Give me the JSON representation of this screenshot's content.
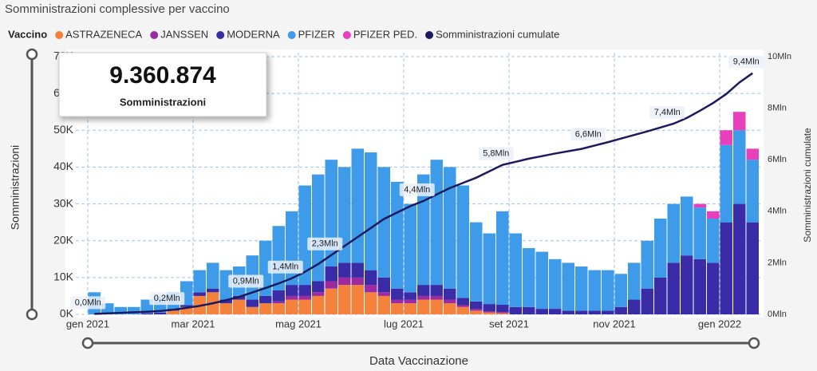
{
  "chart_data": {
    "type": "bar",
    "stacked": true,
    "title": "Somministrazioni complessive per vaccino",
    "legend_title": "Vaccino",
    "ylabel": "Somministrazioni",
    "y2label": "Somministrazioni cumulate",
    "xlabel": "Data Vaccinazione",
    "card": {
      "value": "9.360.874",
      "label": "Somministrazioni"
    },
    "grid": true,
    "categories": [
      "gen 2021",
      null,
      null,
      null,
      null,
      null,
      null,
      null,
      "mar 2021",
      null,
      null,
      null,
      null,
      null,
      null,
      null,
      "mag 2021",
      null,
      null,
      null,
      null,
      null,
      null,
      null,
      "lug 2021",
      null,
      null,
      null,
      null,
      null,
      null,
      null,
      "set 2021",
      null,
      null,
      null,
      null,
      null,
      null,
      null,
      "nov 2021",
      null,
      null,
      null,
      null,
      null,
      null,
      null,
      "gen 2022",
      null,
      null
    ],
    "ylim": [
      0,
      70
    ],
    "yticks": [
      {
        "value": 0,
        "label": "0K"
      },
      {
        "value": 10,
        "label": "10K"
      },
      {
        "value": 20,
        "label": "20K"
      },
      {
        "value": 30,
        "label": "30K"
      },
      {
        "value": 40,
        "label": "40K"
      },
      {
        "value": 50,
        "label": "50K"
      },
      {
        "value": 60,
        "label": "60K"
      },
      {
        "value": 70,
        "label": "70K"
      }
    ],
    "y2lim": [
      0,
      10
    ],
    "y2ticks": [
      {
        "value": 0,
        "label": "0Mln"
      },
      {
        "value": 2,
        "label": "2Mln"
      },
      {
        "value": 4,
        "label": "4Mln"
      },
      {
        "value": 6,
        "label": "6Mln"
      },
      {
        "value": 8,
        "label": "8Mln"
      },
      {
        "value": 10,
        "label": "10Mln"
      }
    ],
    "series": [
      {
        "name": "ASTRAZENECA",
        "color": "#f5823c",
        "values": [
          0,
          0,
          0,
          0,
          0,
          0,
          1,
          2,
          5,
          6,
          3,
          4,
          2,
          3,
          3,
          4,
          4,
          5,
          7,
          8,
          8,
          6,
          5,
          3,
          3,
          4,
          4,
          3,
          2,
          1,
          0.5,
          0.3,
          0,
          0,
          0,
          0,
          0,
          0,
          0,
          0,
          0,
          0,
          0,
          0,
          0,
          0,
          0,
          0,
          0,
          0,
          0
        ]
      },
      {
        "name": "JANSSEN",
        "color": "#9c2aa0",
        "values": [
          0,
          0,
          0,
          0,
          0,
          0,
          0,
          0,
          0,
          0,
          0,
          0,
          0,
          0,
          0.5,
          1,
          1,
          1,
          2,
          2,
          2,
          2,
          1,
          1,
          1,
          1,
          1,
          1,
          0.5,
          0.5,
          0.3,
          0.3,
          0,
          0,
          0,
          0,
          0,
          0,
          0,
          0,
          0,
          0,
          0,
          0,
          0,
          0,
          0,
          0,
          0,
          0,
          0
        ]
      },
      {
        "name": "MODERNA",
        "color": "#3a2ca6",
        "values": [
          0,
          0,
          0,
          0,
          0.3,
          0.5,
          0.5,
          0.5,
          1,
          1,
          1,
          1,
          2,
          2,
          3,
          3,
          3,
          3,
          4,
          4,
          4,
          4,
          4,
          3,
          2,
          3,
          3,
          3,
          2,
          2,
          2,
          2,
          2,
          2,
          1.5,
          1.5,
          1,
          1,
          1,
          1,
          2,
          4,
          7,
          10,
          14,
          16,
          15,
          14,
          25,
          30,
          25
        ]
      },
      {
        "name": "PFIZER",
        "color": "#3d9be9",
        "values": [
          6,
          3,
          2,
          2,
          3.7,
          4.5,
          4.5,
          6.5,
          6,
          7,
          8,
          8,
          12,
          15,
          17.5,
          20,
          27,
          29,
          29,
          26,
          31,
          32,
          30,
          29,
          24,
          30,
          34,
          33,
          30.5,
          21.5,
          19.2,
          25.4,
          20,
          16,
          15.5,
          13.5,
          13,
          12,
          11,
          11,
          9,
          10,
          13,
          16,
          16,
          16,
          14,
          12,
          21,
          20,
          17
        ]
      },
      {
        "name": "PFIZER PED.",
        "color": "#e83fbb",
        "values": [
          0,
          0,
          0,
          0,
          0,
          0,
          0,
          0,
          0,
          0,
          0,
          0,
          0,
          0,
          0,
          0,
          0,
          0,
          0,
          0,
          0,
          0,
          0,
          0,
          0,
          0,
          0,
          0,
          0,
          0,
          0,
          0,
          0,
          0,
          0,
          0,
          0,
          0,
          0,
          0,
          0,
          0,
          0,
          0,
          0,
          0,
          1,
          2,
          4,
          5,
          3
        ]
      },
      {
        "name": "Somministrazioni cumulate",
        "color": "#1c1a5c",
        "type": "line",
        "axis": "y2",
        "values": [
          0.02,
          0.04,
          0.06,
          0.08,
          0.1,
          0.13,
          0.18,
          0.25,
          0.33,
          0.43,
          0.55,
          0.68,
          0.85,
          1.02,
          1.2,
          1.4,
          1.65,
          1.95,
          2.3,
          2.65,
          3.0,
          3.35,
          3.7,
          3.95,
          4.2,
          4.4,
          4.65,
          4.9,
          5.1,
          5.3,
          5.55,
          5.8,
          5.92,
          6.04,
          6.14,
          6.24,
          6.33,
          6.42,
          6.55,
          6.68,
          6.82,
          6.96,
          7.1,
          7.25,
          7.4,
          7.62,
          7.9,
          8.2,
          8.55,
          9.0,
          9.36
        ],
        "value_labels": [
          "0,0Mln",
          null,
          null,
          null,
          null,
          null,
          "0,2Mln",
          null,
          null,
          null,
          null,
          null,
          "0,9Mln",
          null,
          null,
          "1,4Mln",
          null,
          null,
          "2,3Mln",
          null,
          null,
          null,
          null,
          null,
          null,
          "4,4Mln",
          null,
          null,
          null,
          null,
          null,
          "5,8Mln",
          null,
          null,
          null,
          null,
          null,
          null,
          "6,6Mln",
          null,
          null,
          null,
          null,
          null,
          "7,4Mln",
          null,
          null,
          null,
          null,
          null,
          "9,4Mln"
        ]
      }
    ]
  }
}
